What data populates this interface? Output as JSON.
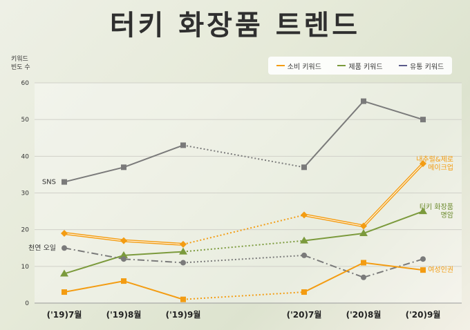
{
  "page": {
    "title": "터키 화장품 트렌드",
    "yunit_line1": "키워드",
    "yunit_line2": "빈도 수"
  },
  "legend": [
    {
      "label": "소비 키워드",
      "color": "#f39c12"
    },
    {
      "label": "제품 키워드",
      "color": "#7b9a3c"
    },
    {
      "label": "유통 키워드",
      "color": "#5a5a8a"
    }
  ],
  "chart_data": {
    "type": "line",
    "x": [
      "('19)7월",
      "('19)8월",
      "('19)9월",
      "('20)7월",
      "('20)8월",
      "('20)9월"
    ],
    "ylim": [
      0,
      60
    ],
    "yticks": [
      0,
      10,
      20,
      30,
      40,
      50,
      60
    ],
    "grid": true,
    "series": [
      {
        "name": "SNS",
        "category": "유통 키워드",
        "values": [
          33,
          37,
          43,
          37,
          55,
          50
        ],
        "color": "#7a7a7a",
        "marker": "square",
        "style": "solid"
      },
      {
        "name": "내추럴&제로 메이크업",
        "category": "소비 키워드",
        "values": [
          19,
          17,
          16,
          24,
          21,
          38
        ],
        "color": "#f39c12",
        "marker": "diamond",
        "style": "double"
      },
      {
        "name": "터키 화장품 명암",
        "category": "제품 키워드",
        "values": [
          8,
          13,
          14,
          17,
          19,
          25
        ],
        "color": "#7b9a3c",
        "marker": "triangle",
        "style": "solid"
      },
      {
        "name": "천연 오일",
        "category": "제품 키워드",
        "values": [
          15,
          12,
          11,
          13,
          7,
          12
        ],
        "color": "#7a7a7a",
        "marker": "circle",
        "style": "dashdot"
      },
      {
        "name": "여성인권",
        "category": "소비 키워드",
        "values": [
          3,
          6,
          1,
          3,
          11,
          9
        ],
        "color": "#f39c12",
        "marker": "square",
        "style": "solid"
      }
    ],
    "series_labels": [
      {
        "series": 0,
        "lines": [
          "SNS"
        ],
        "anchor": "left",
        "color": "#333333"
      },
      {
        "series": 1,
        "lines": [
          "내추럴&제로",
          "메이크업"
        ],
        "anchor": "right",
        "color": "#f39c12"
      },
      {
        "series": 2,
        "lines": [
          "터키 화장품",
          "명암"
        ],
        "anchor": "right",
        "color": "#6b8a2c"
      },
      {
        "series": 3,
        "lines": [
          "천연 오일"
        ],
        "anchor": "left",
        "color": "#333333"
      },
      {
        "series": 4,
        "lines": [
          "여성인권"
        ],
        "anchor": "right",
        "color": "#f39c12"
      }
    ]
  }
}
